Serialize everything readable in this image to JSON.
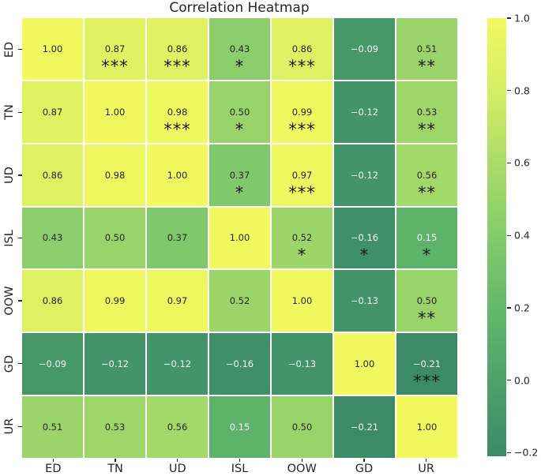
{
  "title": "Correlation Heatmap",
  "chart_data": {
    "type": "heatmap",
    "title": "Correlation Heatmap",
    "categories": [
      "ED",
      "TN",
      "UD",
      "ISL",
      "OOW",
      "GD",
      "UR"
    ],
    "matrix": [
      [
        1.0,
        0.87,
        0.86,
        0.43,
        0.86,
        -0.09,
        0.51
      ],
      [
        0.87,
        1.0,
        0.98,
        0.5,
        0.99,
        -0.12,
        0.53
      ],
      [
        0.86,
        0.98,
        1.0,
        0.37,
        0.97,
        -0.12,
        0.56
      ],
      [
        0.43,
        0.5,
        0.37,
        1.0,
        0.52,
        -0.16,
        0.15
      ],
      [
        0.86,
        0.99,
        0.97,
        0.52,
        1.0,
        -0.13,
        0.5
      ],
      [
        -0.09,
        -0.12,
        -0.12,
        -0.16,
        -0.13,
        1.0,
        -0.21
      ],
      [
        0.51,
        0.53,
        0.56,
        0.15,
        0.5,
        -0.21,
        1.0
      ]
    ],
    "significance": [
      [
        "",
        "***",
        "***",
        "*",
        "***",
        "",
        "**"
      ],
      [
        "",
        "",
        "***",
        "*",
        "***",
        "",
        "**"
      ],
      [
        "",
        "",
        "",
        "*",
        "***",
        "",
        "**"
      ],
      [
        "",
        "",
        "",
        "",
        "*",
        "*",
        "*"
      ],
      [
        "",
        "",
        "",
        "",
        "",
        "",
        "**"
      ],
      [
        "",
        "",
        "",
        "",
        "",
        "",
        "***"
      ],
      [
        "",
        "",
        "",
        "",
        "",
        "",
        ""
      ]
    ],
    "value_format": "two-decimals",
    "colorbar": {
      "vmin": -0.21,
      "vmax": 1.0,
      "ticks": [
        1.0,
        0.8,
        0.6,
        0.4,
        0.2,
        0.0,
        -0.2
      ],
      "tick_labels": [
        "1.0",
        "0.8",
        "0.6",
        "0.4",
        "0.2",
        "0.0",
        "−0.2"
      ],
      "position": "right"
    },
    "colormap_stops": [
      {
        "value": -0.21,
        "color": "#3c8a66"
      },
      {
        "value": 0.0,
        "color": "#4da26b"
      },
      {
        "value": 0.2,
        "color": "#64b86b"
      },
      {
        "value": 0.4,
        "color": "#85cb6c"
      },
      {
        "value": 0.6,
        "color": "#abdc68"
      },
      {
        "value": 0.8,
        "color": "#d5ee64"
      },
      {
        "value": 1.0,
        "color": "#f1f95f"
      }
    ],
    "grid_line_color": "#ffffff",
    "text_color_dark": "#262626",
    "text_color_light": "#f7f7f7",
    "star_color": "#1a1a1a",
    "light_text_threshold": 0.3,
    "grid": "white-cell-borders"
  }
}
